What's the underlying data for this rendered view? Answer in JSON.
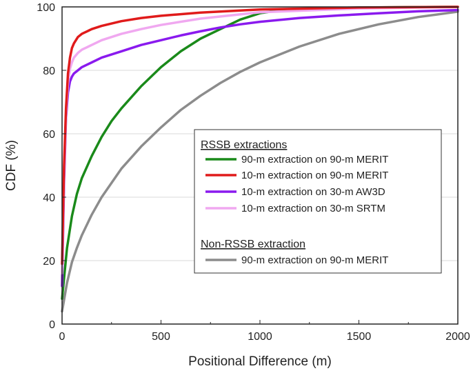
{
  "chart_data": {
    "type": "line",
    "title": "",
    "xlabel": "Positional Difference (m)",
    "ylabel": "CDF (%)",
    "xlim": [
      0,
      2000
    ],
    "ylim": [
      0,
      100
    ],
    "xticks": [
      0,
      500,
      1000,
      1500,
      2000
    ],
    "yticks": [
      0,
      20,
      40,
      60,
      80,
      100
    ],
    "grid": "horizontal",
    "legend_placement": "center-right",
    "legend_groups": [
      {
        "heading": "RSSB extractions",
        "series_indices": [
          0,
          1,
          2,
          3
        ]
      },
      {
        "heading": "Non-RSSB extraction",
        "series_indices": [
          4
        ]
      }
    ],
    "series": [
      {
        "name": "90-m extraction on 90-m MERIT",
        "color": "#1a8a1a",
        "x": [
          0,
          25,
          50,
          75,
          100,
          150,
          200,
          250,
          300,
          400,
          500,
          600,
          700,
          800,
          900,
          1000,
          1100,
          1200,
          1400,
          1600,
          1800,
          2000
        ],
        "y": [
          8,
          24,
          34,
          41,
          46,
          53,
          59,
          64,
          68,
          75,
          81,
          86,
          90,
          93,
          96,
          98,
          99,
          99.4,
          99.7,
          99.85,
          99.95,
          100
        ]
      },
      {
        "name": "10-m extraction on 90-m MERIT",
        "color": "#e01b1b",
        "x": [
          0,
          10,
          20,
          30,
          40,
          50,
          60,
          80,
          100,
          150,
          200,
          300,
          400,
          500,
          700,
          1000,
          1500,
          2000
        ],
        "y": [
          19,
          50,
          68,
          79,
          84,
          87,
          88.5,
          90.5,
          91.5,
          93,
          94,
          95.5,
          96.5,
          97.2,
          98.2,
          99.2,
          99.8,
          100
        ]
      },
      {
        "name": "10-m extraction on 30-m AW3D",
        "color": "#8a1aee",
        "x": [
          0,
          10,
          20,
          30,
          40,
          50,
          60,
          80,
          100,
          150,
          200,
          300,
          400,
          500,
          600,
          700,
          800,
          900,
          1000,
          1200,
          1400,
          1600,
          1800,
          2000
        ],
        "y": [
          12,
          45,
          65,
          73,
          76.5,
          78,
          79,
          80,
          81,
          82.5,
          84,
          86,
          88,
          89.5,
          91,
          92.3,
          93.5,
          94.5,
          95.3,
          96.5,
          97.3,
          98,
          98.6,
          99
        ]
      },
      {
        "name": "10-m extraction on 30-m SRTM",
        "color": "#f0a8f0",
        "x": [
          0,
          10,
          20,
          30,
          40,
          50,
          60,
          80,
          100,
          150,
          200,
          300,
          400,
          500,
          700,
          1000,
          1500,
          2000
        ],
        "y": [
          16,
          48,
          66,
          76,
          80.5,
          82.5,
          84,
          85.5,
          86.5,
          88,
          89.5,
          91.5,
          93,
          94.3,
          96.3,
          98.3,
          99.5,
          100
        ]
      },
      {
        "name": "90-m extraction on 90-m MERIT",
        "color": "#8c8c8c",
        "x": [
          0,
          25,
          50,
          75,
          100,
          150,
          200,
          300,
          400,
          500,
          600,
          700,
          800,
          900,
          1000,
          1200,
          1400,
          1600,
          1800,
          2000
        ],
        "y": [
          4,
          13,
          19.5,
          24,
          28,
          34.5,
          40,
          49,
          56,
          62,
          67.5,
          72,
          76,
          79.5,
          82.5,
          87.5,
          91.5,
          94.5,
          96.8,
          98.5
        ]
      }
    ]
  }
}
